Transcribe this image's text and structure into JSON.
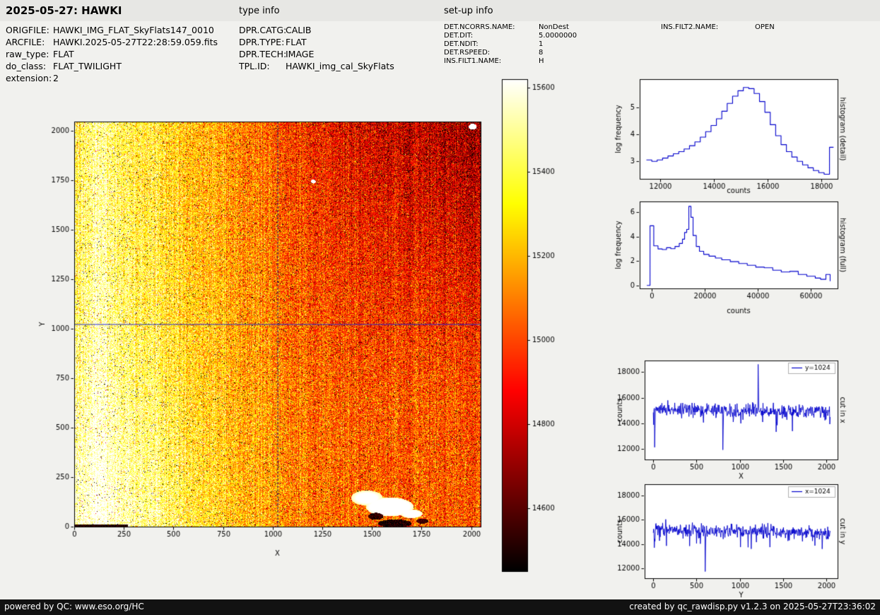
{
  "header": {
    "title": "2025-05-27: HAWKI",
    "type_info_label": "type info",
    "setup_info_label": "set-up info"
  },
  "metadata": {
    "col1": [
      {
        "label": "ORIGFILE:",
        "value": "HAWKI_IMG_FLAT_SkyFlats147_0010"
      },
      {
        "label": "ARCFILE:",
        "value": "HAWKI.2025-05-27T22:28:59.059.fits"
      },
      {
        "label": "raw_type:",
        "value": "FLAT"
      },
      {
        "label": "do_class:",
        "value": "FLAT_TWILIGHT"
      },
      {
        "label": "extension:",
        "value": "2"
      }
    ],
    "col2": [
      {
        "label": "DPR.CATG:",
        "value": "CALIB"
      },
      {
        "label": "DPR.TYPE:",
        "value": "FLAT"
      },
      {
        "label": "DPR.TECH:",
        "value": "IMAGE"
      },
      {
        "label": "TPL.ID:",
        "value": "HAWKI_img_cal_SkyFlats"
      }
    ],
    "col3": [
      {
        "label": "DET.NCORRS.NAME:",
        "value": "NonDest"
      },
      {
        "label": "DET.DIT:",
        "value": "5.0000000"
      },
      {
        "label": "DET.NDIT:",
        "value": "1"
      },
      {
        "label": "DET.RSPEED:",
        "value": "8"
      },
      {
        "label": "INS.FILT1.NAME:",
        "value": "H"
      }
    ],
    "col4": [
      {
        "label": "INS.FILT2.NAME:",
        "value": "OPEN"
      }
    ]
  },
  "footer": {
    "left": "powered by QC: www.eso.org/HC",
    "right": "created by qc_rawdisp.py v1.2.3 on 2025-05-27T23:36:02"
  },
  "chart_data": [
    {
      "id": "main_image",
      "type": "heatmap",
      "xlabel": "X",
      "ylabel": "Y",
      "xlim": [
        0,
        2048
      ],
      "ylim": [
        0,
        2048
      ],
      "xticks": [
        0,
        250,
        500,
        750,
        1000,
        1250,
        1500,
        1750,
        2000
      ],
      "yticks": [
        0,
        250,
        500,
        750,
        1000,
        1250,
        1500,
        1750,
        2000
      ],
      "colormap": "hot",
      "value_range": [
        14450,
        15620
      ],
      "crosshair_x": 1024,
      "crosshair_y": 1024,
      "crosshair_v_color": "#1a1a6e",
      "crosshair_h_color": "#2929cc",
      "seed": 2025,
      "description": "2048x2048 HAWKI twilight sky flat, ~15000 counts median; bright white-yellow vertical banding on left edge, orange centre, darker red top-right quadrant; saturated white blob with black dead spots near (1600, 90); dark strip along bottom-left edge; bright speck near (2008, 2022)"
    },
    {
      "id": "colorbar",
      "type": "colorbar",
      "colormap": "hot",
      "value_range": [
        14450,
        15620
      ],
      "ticks": [
        15600,
        15400,
        15200,
        15000,
        14800,
        14600
      ]
    },
    {
      "id": "histogram_detail",
      "type": "line",
      "draw": "step",
      "right_label": "histogram (detail)",
      "xlabel": "counts",
      "ylabel": "log frequency",
      "color": "#0000cc",
      "xlim": [
        11250,
        18600
      ],
      "ylim": [
        2.35,
        6.05
      ],
      "xticks": [
        12000,
        14000,
        16000,
        18000
      ],
      "yticks": [
        3,
        4,
        5
      ],
      "x": [
        11500,
        11700,
        11900,
        12100,
        12300,
        12500,
        12700,
        12900,
        13100,
        13300,
        13500,
        13700,
        13900,
        14100,
        14300,
        14500,
        14700,
        14900,
        15100,
        15300,
        15500,
        15700,
        15900,
        16100,
        16300,
        16500,
        16700,
        16900,
        17100,
        17300,
        17500,
        17700,
        17900,
        18100,
        18300,
        18450
      ],
      "y": [
        3.05,
        3.0,
        3.05,
        3.12,
        3.2,
        3.28,
        3.36,
        3.46,
        3.58,
        3.72,
        3.9,
        4.1,
        4.33,
        4.58,
        4.86,
        5.15,
        5.42,
        5.62,
        5.74,
        5.7,
        5.52,
        5.22,
        4.82,
        4.36,
        3.95,
        3.62,
        3.36,
        3.16,
        3.0,
        2.87,
        2.76,
        2.66,
        2.58,
        2.52,
        3.52,
        3.52
      ]
    },
    {
      "id": "histogram_full",
      "type": "line",
      "draw": "step",
      "right_label": "histogram (full)",
      "xlabel": "counts",
      "ylabel": "log frequency",
      "color": "#0000cc",
      "xlim": [
        -4500,
        70000
      ],
      "ylim": [
        -0.25,
        6.9
      ],
      "xticks": [
        0,
        20000,
        40000,
        60000
      ],
      "yticks": [
        0,
        2,
        4,
        6
      ],
      "x": [
        -1800,
        -600,
        800,
        2400,
        4000,
        5600,
        7200,
        8800,
        10400,
        11600,
        12400,
        13200,
        14000,
        14800,
        15600,
        16800,
        18000,
        19600,
        21600,
        24000,
        26400,
        29600,
        32800,
        36000,
        39200,
        42400,
        45600,
        48800,
        52000,
        55200,
        58400,
        61600,
        63600,
        65600,
        67200
      ],
      "y": [
        0,
        4.9,
        3.25,
        3.0,
        2.95,
        3.1,
        3.02,
        3.2,
        3.45,
        3.8,
        4.35,
        4.6,
        6.5,
        5.6,
        4.1,
        3.2,
        2.8,
        2.55,
        2.4,
        2.25,
        2.1,
        1.95,
        1.8,
        1.65,
        1.5,
        1.45,
        1.25,
        1.1,
        1.15,
        0.9,
        0.75,
        0.6,
        0.5,
        0.9,
        0.35
      ]
    },
    {
      "id": "cut_x",
      "type": "line",
      "draw": "line",
      "legend": "y=1024",
      "right_label": "cut in x",
      "xlabel": "X",
      "ylabel": "counts",
      "color": "#0000cc",
      "xlim": [
        -100,
        2130
      ],
      "ylim": [
        11200,
        18900
      ],
      "xticks": [
        0,
        500,
        1000,
        1500,
        2000
      ],
      "yticks": [
        12000,
        14000,
        16000,
        18000
      ],
      "baseline": 15050,
      "trend": -0.08,
      "noise_sigma": 270,
      "n_points": 512,
      "x_step": 4,
      "seed": 77,
      "spikes": [
        {
          "x": 15,
          "y": 12150
        },
        {
          "x": 805,
          "y": 11950
        },
        {
          "x": 1210,
          "y": 18600
        },
        {
          "x": 1420,
          "y": 13350
        },
        {
          "x": 2040,
          "y": 13950
        }
      ]
    },
    {
      "id": "cut_y",
      "type": "line",
      "draw": "line",
      "legend": "x=1024",
      "right_label": "cut in y",
      "xlabel": "Y",
      "ylabel": "counts",
      "color": "#0000cc",
      "xlim": [
        -100,
        2130
      ],
      "ylim": [
        11200,
        18900
      ],
      "xticks": [
        0,
        500,
        1000,
        1500,
        2000
      ],
      "yticks": [
        12000,
        14000,
        16000,
        18000
      ],
      "baseline": 15150,
      "trend": -0.12,
      "noise_sigma": 260,
      "n_points": 512,
      "x_step": 4,
      "seed": 131,
      "spikes": [
        {
          "x": 10,
          "y": 13700
        },
        {
          "x": 600,
          "y": 11750
        },
        {
          "x": 1950,
          "y": 13600
        }
      ]
    }
  ]
}
